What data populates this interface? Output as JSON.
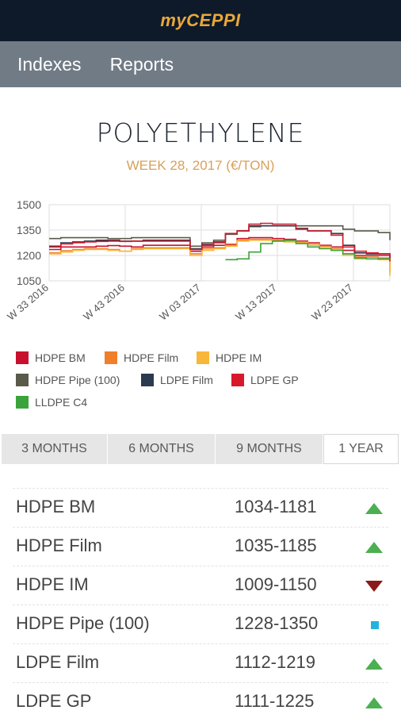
{
  "app": {
    "title": "myCEPPI"
  },
  "nav": {
    "items": [
      "Indexes",
      "Reports"
    ]
  },
  "page": {
    "title": "POLYETHYLENE",
    "subtitle": "WEEK 28, 2017 (€/TON)"
  },
  "chart_data": {
    "type": "line",
    "title": "",
    "xlabel": "",
    "ylabel": "",
    "ylim": [
      1050,
      1500
    ],
    "yticks": [
      1050,
      1200,
      1350,
      1500
    ],
    "x_tick_labels": [
      "W 33 2016",
      "W 43 2016",
      "W 03 2017",
      "W 13 2017",
      "W 23 2017"
    ],
    "grid": true,
    "legend_position": "bottom",
    "series": [
      {
        "name": "HDPE BM",
        "color": "#c8102e",
        "values": [
          1235,
          1250,
          1250,
          1250,
          1255,
          1258,
          1255,
          1250,
          1260,
          1260,
          1260,
          1260,
          1225,
          1250,
          1260,
          1265,
          1300,
          1305,
          1305,
          1300,
          1295,
          1285,
          1275,
          1260,
          1250,
          1230,
          1200,
          1200,
          1200,
          1180
        ]
      },
      {
        "name": "HDPE Film",
        "color": "#f07f2a",
        "values": [
          1215,
          1228,
          1235,
          1240,
          1240,
          1235,
          1225,
          1240,
          1245,
          1245,
          1245,
          1245,
          1210,
          1240,
          1245,
          1260,
          1290,
          1295,
          1295,
          1290,
          1285,
          1280,
          1270,
          1255,
          1240,
          1210,
          1190,
          1190,
          1185,
          1100
        ]
      },
      {
        "name": "HDPE IM",
        "color": "#f8b63a",
        "values": [
          1210,
          1220,
          1230,
          1235,
          1235,
          1230,
          1225,
          1235,
          1240,
          1240,
          1240,
          1240,
          1200,
          1230,
          1240,
          1255,
          1285,
          1290,
          1290,
          1285,
          1280,
          1275,
          1260,
          1245,
          1230,
          1200,
          1180,
          1180,
          1175,
          1080
        ]
      },
      {
        "name": "HDPE Pipe (100)",
        "color": "#5a5a4a",
        "values": [
          1300,
          1305,
          1305,
          1305,
          1305,
          1300,
          1300,
          1305,
          1305,
          1305,
          1305,
          1305,
          1255,
          1275,
          1290,
          1325,
          1345,
          1370,
          1375,
          1375,
          1375,
          1375,
          1375,
          1375,
          1375,
          1355,
          1345,
          1345,
          1335,
          1290
        ]
      },
      {
        "name": "LDPE Film",
        "color": "#2b3a4f",
        "values": [
          1255,
          1275,
          1280,
          1285,
          1290,
          1290,
          1285,
          1285,
          1290,
          1290,
          1290,
          1290,
          1240,
          1265,
          1280,
          1330,
          1345,
          1375,
          1375,
          1375,
          1375,
          1360,
          1345,
          1345,
          1330,
          1260,
          1215,
          1210,
          1210,
          1175
        ]
      },
      {
        "name": "LDPE GP",
        "color": "#d8192a",
        "values": [
          1250,
          1268,
          1275,
          1280,
          1283,
          1285,
          1283,
          1285,
          1285,
          1285,
          1285,
          1285,
          1235,
          1260,
          1275,
          1330,
          1345,
          1385,
          1390,
          1385,
          1385,
          1355,
          1345,
          1345,
          1320,
          1250,
          1225,
          1215,
          1210,
          1165
        ]
      },
      {
        "name": "LLDPE C4",
        "color": "#3aa43a",
        "values": [
          null,
          null,
          null,
          null,
          null,
          null,
          null,
          null,
          null,
          null,
          null,
          null,
          null,
          null,
          null,
          1175,
          1180,
          1220,
          1270,
          1285,
          1290,
          1270,
          1250,
          1240,
          1230,
          1210,
          1185,
          1180,
          1180,
          1175
        ]
      }
    ]
  },
  "range_tabs": {
    "items": [
      "3 MONTHS",
      "6 MONTHS",
      "9 MONTHS",
      "1 YEAR"
    ],
    "active_index": 3
  },
  "prices": [
    {
      "name": "HDPE BM",
      "range": "1034-1181",
      "trend": "up"
    },
    {
      "name": "HDPE Film",
      "range": "1035-1185",
      "trend": "up"
    },
    {
      "name": "HDPE IM",
      "range": "1009-1150",
      "trend": "down"
    },
    {
      "name": "HDPE Pipe (100)",
      "range": "1228-1350",
      "trend": "flat"
    },
    {
      "name": "LDPE Film",
      "range": "1112-1219",
      "trend": "up"
    },
    {
      "name": "LDPE GP",
      "range": "1111-1225",
      "trend": "up"
    }
  ],
  "trend_colors": {
    "up": "#4caf50",
    "down": "#8b1a1a",
    "flat": "#22b3dc"
  }
}
